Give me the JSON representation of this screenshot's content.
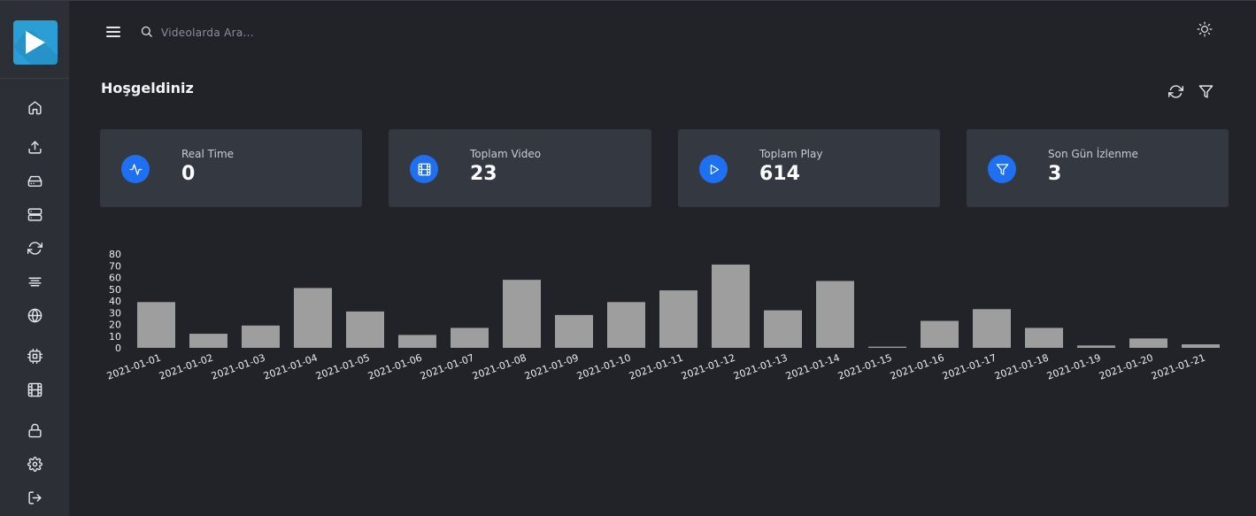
{
  "search": {
    "placeholder": "Videolarda Ara..."
  },
  "page": {
    "title": "Hoşgeldiniz"
  },
  "sidebar": {
    "items": [
      {
        "name": "home-icon"
      },
      {
        "name": "upload-icon"
      },
      {
        "name": "hard-drive-icon"
      },
      {
        "name": "server-icon"
      },
      {
        "name": "refresh-icon"
      },
      {
        "name": "align-center-icon"
      },
      {
        "name": "globe-icon"
      },
      {
        "name": "cpu-icon"
      },
      {
        "name": "film-icon"
      },
      {
        "name": "lock-icon"
      },
      {
        "name": "settings-icon"
      },
      {
        "name": "logout-icon"
      }
    ]
  },
  "cards": [
    {
      "label": "Real Time",
      "value": "0",
      "icon": "activity-icon"
    },
    {
      "label": "Toplam Video",
      "value": "23",
      "icon": "film-icon"
    },
    {
      "label": "Toplam Play",
      "value": "614",
      "icon": "play-icon"
    },
    {
      "label": "Son Gün İzlenme",
      "value": "3",
      "icon": "filter-icon"
    }
  ],
  "colors": {
    "accent": "#1f6ff2",
    "logo": "#2a9fd6",
    "bar": "#9e9e9e"
  },
  "chart_data": {
    "type": "bar",
    "categories": [
      "2021-01-01",
      "2021-01-02",
      "2021-01-03",
      "2021-01-04",
      "2021-01-05",
      "2021-01-06",
      "2021-01-07",
      "2021-01-08",
      "2021-01-09",
      "2021-01-10",
      "2021-01-11",
      "2021-01-12",
      "2021-01-13",
      "2021-01-14",
      "2021-01-15",
      "2021-01-16",
      "2021-01-17",
      "2021-01-18",
      "2021-01-19",
      "2021-01-20",
      "2021-01-21"
    ],
    "values": [
      39,
      12,
      19,
      51,
      31,
      11,
      17,
      58,
      28,
      39,
      49,
      71,
      32,
      57,
      1,
      23,
      33,
      17,
      2,
      8,
      3
    ],
    "yticks": [
      "0",
      "10",
      "20",
      "30",
      "40",
      "50",
      "60",
      "70",
      "80"
    ],
    "ylim": [
      0,
      80
    ],
    "grid": false,
    "legend": "none"
  }
}
